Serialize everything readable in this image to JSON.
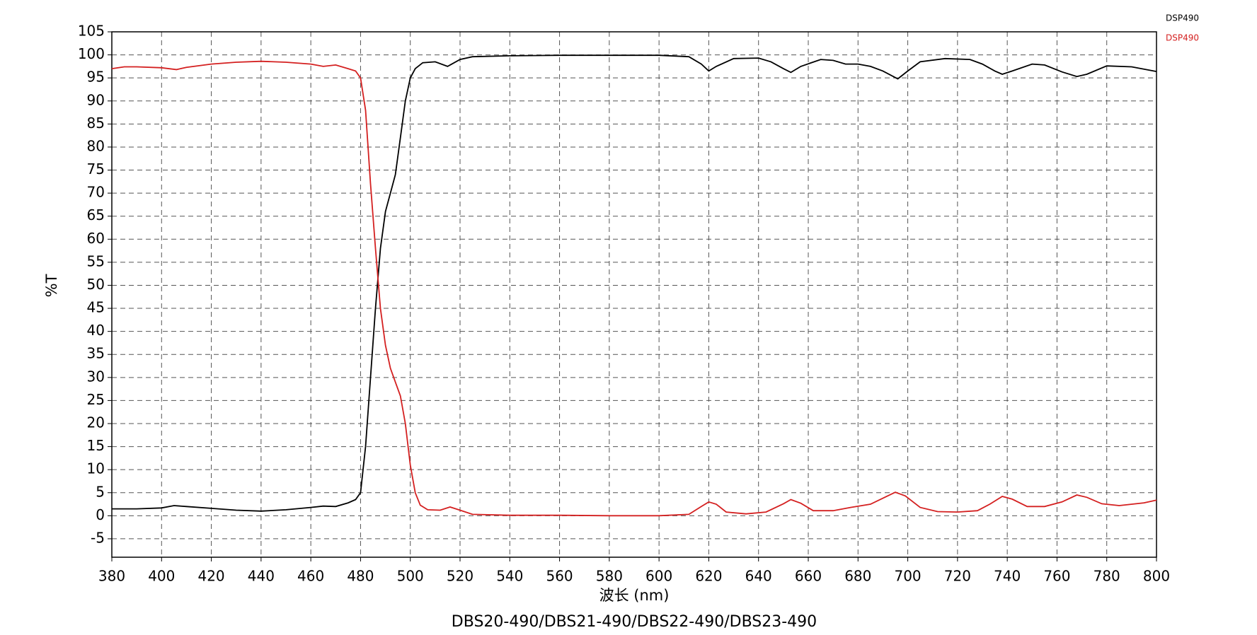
{
  "chart_data": {
    "type": "line",
    "title": "DBS20-490/DBS21-490/DBS22-490/DBS23-490",
    "x_label": "波长 (nm)",
    "y_label": "%T",
    "xlim": [
      380,
      800
    ],
    "ylim": [
      -9,
      105
    ],
    "xticks": [
      380,
      400,
      420,
      440,
      460,
      480,
      500,
      520,
      540,
      560,
      580,
      600,
      620,
      640,
      660,
      680,
      700,
      720,
      740,
      760,
      780,
      800
    ],
    "yticks": [
      -5,
      0,
      5,
      10,
      15,
      20,
      25,
      30,
      35,
      40,
      45,
      50,
      55,
      60,
      65,
      70,
      75,
      80,
      85,
      90,
      95,
      100,
      105
    ],
    "grid": true,
    "legend": "top-right",
    "series": [
      {
        "name": "DSP490",
        "color": "#000000",
        "x": [
          380,
          390,
          400,
          405,
          410,
          420,
          430,
          440,
          450,
          460,
          465,
          470,
          475,
          478,
          480,
          482,
          484,
          486,
          488,
          490,
          492,
          494,
          496,
          498,
          500,
          502,
          505,
          510,
          515,
          520,
          525,
          540,
          560,
          580,
          600,
          612,
          617,
          620,
          623,
          630,
          640,
          645,
          650,
          653,
          657,
          665,
          670,
          675,
          680,
          685,
          690,
          696,
          700,
          705,
          715,
          725,
          730,
          735,
          738,
          742,
          750,
          755,
          762,
          768,
          772,
          780,
          790,
          800
        ],
        "values": [
          1.5,
          1.5,
          1.7,
          2.2,
          2.0,
          1.6,
          1.2,
          1.0,
          1.3,
          1.8,
          2.1,
          2.0,
          2.8,
          3.5,
          5,
          15,
          30,
          45,
          58,
          66,
          70,
          74,
          82,
          90,
          95,
          97,
          98.3,
          98.5,
          97.5,
          99,
          99.6,
          99.8,
          99.9,
          99.9,
          99.9,
          99.6,
          98,
          96.5,
          97.5,
          99.2,
          99.3,
          98.5,
          97,
          96.2,
          97.5,
          99,
          98.8,
          98,
          98,
          97.5,
          96.5,
          94.8,
          96.5,
          98.5,
          99.2,
          99,
          98,
          96.5,
          95.8,
          96.5,
          98,
          97.8,
          96.3,
          95.3,
          95.8,
          97.6,
          97.4,
          96.4
        ]
      },
      {
        "name": "DSP490",
        "color": "#d42020",
        "x": [
          380,
          385,
          390,
          400,
          406,
          410,
          420,
          430,
          440,
          450,
          460,
          465,
          470,
          475,
          478,
          480,
          482,
          484,
          486,
          488,
          490,
          492,
          494,
          496,
          498,
          500,
          502,
          504,
          507,
          512,
          516,
          520,
          525,
          540,
          560,
          580,
          600,
          612,
          617,
          620,
          623,
          627,
          635,
          643,
          650,
          653,
          657,
          662,
          670,
          677,
          685,
          690,
          695,
          699,
          705,
          712,
          720,
          728,
          733,
          738,
          742,
          748,
          755,
          762,
          768,
          772,
          778,
          785,
          795,
          800
        ],
        "values": [
          97,
          97.4,
          97.4,
          97.2,
          96.8,
          97.3,
          98,
          98.4,
          98.6,
          98.4,
          98,
          97.5,
          97.8,
          97,
          96.5,
          95,
          88,
          72,
          58,
          45,
          37,
          32,
          29,
          26,
          20,
          11,
          5,
          2.3,
          1.3,
          1.2,
          1.9,
          1.2,
          0.3,
          0.1,
          0.1,
          0,
          0,
          0.3,
          2,
          3,
          2.5,
          0.8,
          0.4,
          0.8,
          2.6,
          3.5,
          2.7,
          1.1,
          1.1,
          1.8,
          2.5,
          3.8,
          5.1,
          4.3,
          1.8,
          0.9,
          0.8,
          1.1,
          2.5,
          4.2,
          3.6,
          2,
          2,
          3,
          4.5,
          4,
          2.6,
          2.2,
          2.8,
          3.4
        ]
      }
    ]
  }
}
